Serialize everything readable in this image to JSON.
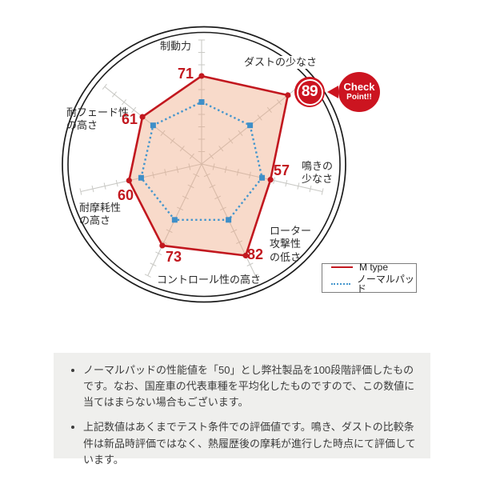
{
  "chart_data": {
    "type": "radar",
    "categories": [
      "制動力",
      "ダストの少なさ",
      "鳴きの少なさ",
      "ローター攻撃性の低さ",
      "コントロール性の高さ",
      "耐摩耗性の高さ",
      "耐フェード性の高さ"
    ],
    "series": [
      {
        "name": "M type",
        "color": "#c2181f",
        "line_style": "solid",
        "fill": "rgba(238,166,128,0.42)",
        "values": [
          71,
          89,
          57,
          82,
          73,
          60,
          61
        ]
      },
      {
        "name": "ノーマルパッド",
        "color": "#4596cd",
        "line_style": "dotted",
        "fill": "none",
        "values": [
          50,
          50,
          50,
          50,
          50,
          50,
          50
        ]
      }
    ],
    "scale": {
      "min": 0,
      "max": 100,
      "tick_interval": 10
    },
    "grid": "radial-spokes-with-ticks",
    "legend_position": "bottom-right",
    "highlight": {
      "category": "ダストの少なさ",
      "value": 89,
      "callout": "Check Point!!"
    }
  },
  "axis_labels": {
    "braking": [
      "制動力"
    ],
    "dust": [
      "ダストの少なさ"
    ],
    "noise": [
      "鳴きの",
      "少なさ"
    ],
    "rotor": [
      "ローター",
      "攻撃性",
      "の低さ"
    ],
    "control": [
      "コントロール性の高さ"
    ],
    "wear": [
      "耐摩耗性",
      "の高さ"
    ],
    "fade": [
      "耐フェード性",
      "の高さ"
    ]
  },
  "badge": {
    "check_line1": "Check",
    "check_line2": "Point!!"
  },
  "notes": {
    "bullets": [
      "ノーマルパッドの性能値を「50」とし弊社製品を100段階評価したものです。なお、国産車の代表車種を平均化したものですので、この数値に当てはまらない場合もございます。",
      "上記数値はあくまでテスト条件での評価値です。鳴き、ダストの比較条件は新品時評価ではなく、熱履歴後の摩耗が進行した時点にて評価しています。"
    ]
  },
  "colors": {
    "accent_red": "#c2181f",
    "badge_red": "#cc1420",
    "normal_blue": "#4596cd",
    "blue_dot": "#3f8fc8",
    "axis_gray": "#c9c9c5",
    "ring_black": "#1c1c1c",
    "notes_bg": "#efefed"
  }
}
